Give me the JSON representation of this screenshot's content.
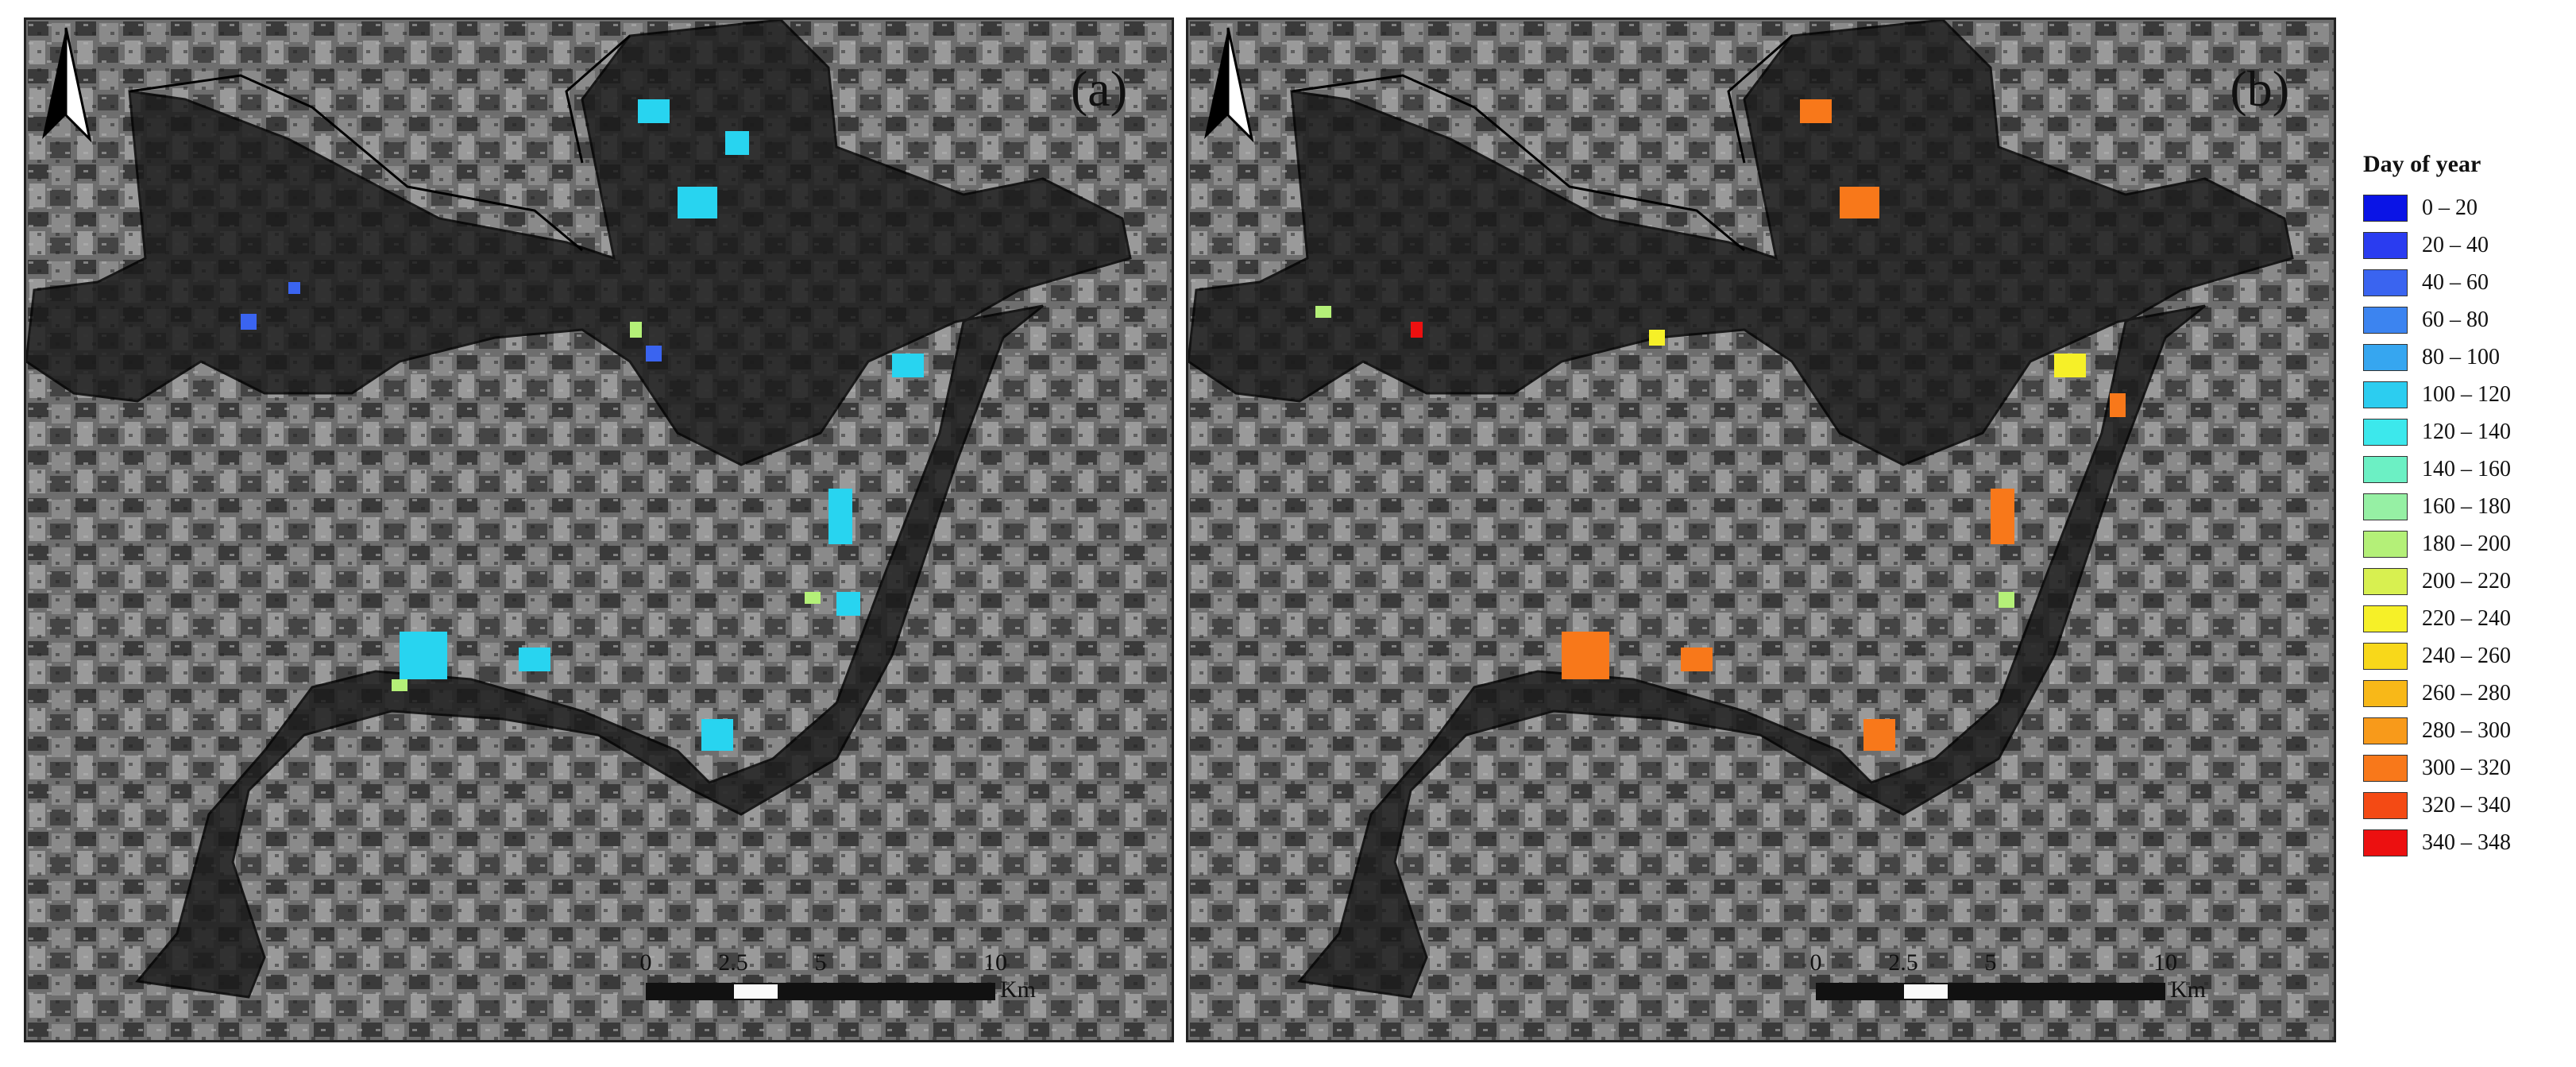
{
  "panels": [
    {
      "id": "a",
      "label": "(a)"
    },
    {
      "id": "b",
      "label": "(b)"
    }
  ],
  "scalebar": {
    "ticks": [
      "0",
      "2.5",
      "5",
      "10"
    ],
    "unit": "Km"
  },
  "legend": {
    "title": "Day of year",
    "items": [
      {
        "label": "0 – 20",
        "color": "#0a14e6"
      },
      {
        "label": "20 – 40",
        "color": "#2a3cf0"
      },
      {
        "label": "40 – 60",
        "color": "#3a64f0"
      },
      {
        "label": "60 – 80",
        "color": "#3c84f0"
      },
      {
        "label": "80 – 100",
        "color": "#36a6f0"
      },
      {
        "label": "100 – 120",
        "color": "#2ccdf0"
      },
      {
        "label": "120 – 140",
        "color": "#3ce8ec"
      },
      {
        "label": "140 – 160",
        "color": "#6cf0c4"
      },
      {
        "label": "160 – 180",
        "color": "#96f0a4"
      },
      {
        "label": "180 – 200",
        "color": "#b4f078"
      },
      {
        "label": "200 – 220",
        "color": "#d8f050"
      },
      {
        "label": "220 – 240",
        "color": "#f6f028"
      },
      {
        "label": "240 – 260",
        "color": "#f8d81a"
      },
      {
        "label": "260 – 280",
        "color": "#f8b818"
      },
      {
        "label": "280 – 300",
        "color": "#f89a1a"
      },
      {
        "label": "300 – 320",
        "color": "#f8781a"
      },
      {
        "label": "320 – 340",
        "color": "#f44a14"
      },
      {
        "label": "340 – 348",
        "color": "#ec1010"
      }
    ]
  }
}
